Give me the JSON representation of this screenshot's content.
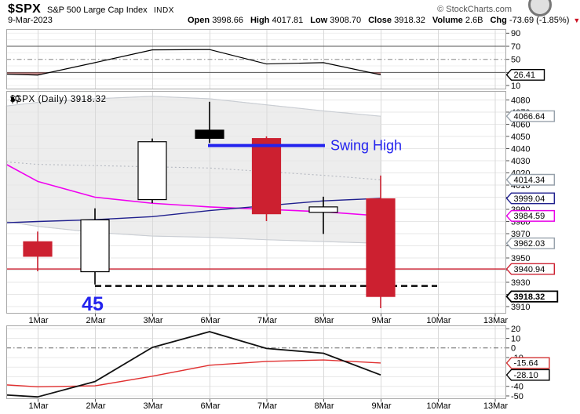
{
  "header": {
    "symbol": "$SPX",
    "name": "S&P 500 Large Cap Index",
    "exchange": "INDX",
    "credit": "© StockCharts.com",
    "date": "9-Mar-2023",
    "quote": [
      {
        "label": "Open",
        "value": "3998.66"
      },
      {
        "label": "High",
        "value": "4017.81"
      },
      {
        "label": "Low",
        "value": "3908.70"
      },
      {
        "label": "Close",
        "value": "3918.32"
      },
      {
        "label": "Volume",
        "value": "2.6B"
      },
      {
        "label": "Chg",
        "value": "-73.69 (-1.85%)"
      }
    ],
    "chg_triangle": "▼"
  },
  "main_label": "$SPX (Daily) 3918.32",
  "x_axis": {
    "labels": [
      "1Mar",
      "2Mar",
      "3Mar",
      "6Mar",
      "7Mar",
      "8Mar",
      "9Mar",
      "10Mar",
      "13Mar"
    ]
  },
  "colors": {
    "down_candle": "#cc2030",
    "annotation_blue": "#2323ee",
    "band_fill": "#ededed"
  },
  "chart_data": [
    {
      "name": "rsi_panel",
      "type": "line",
      "ylim": [
        4.1,
        96.4
      ],
      "ticks": [
        90,
        70,
        50,
        30,
        10
      ],
      "grid_faint": [
        90,
        80,
        60,
        40,
        20,
        10
      ],
      "ref_solid": [
        70,
        30
      ],
      "ref_dashdot": [
        50
      ],
      "categories": [
        "1 Mar",
        "2 Mar",
        "3 Mar",
        "6 Mar",
        "7 Mar",
        "8 Mar",
        "9 Mar"
      ],
      "series": [
        {
          "name": "rsi",
          "color": "#000000",
          "width": 1.2,
          "edge_value": 27.5,
          "values": [
            26,
            45,
            64.5,
            65,
            43,
            45,
            26.41
          ]
        }
      ],
      "fill_below": {
        "threshold": 30,
        "color": "rgba(160,70,70,0.65)"
      },
      "end_labels": [
        {
          "text": "26.41",
          "value": 26.41,
          "border": "#000000",
          "bold": false
        }
      ]
    },
    {
      "name": "price_panel",
      "type": "candlestick",
      "title": "$SPX (Daily) 3918.32",
      "ylim": [
        3904.2,
        4087.4
      ],
      "tick_min": 3910,
      "tick_max": 4080,
      "tick_step": 10,
      "categories": [
        "1 Mar",
        "2 Mar",
        "3 Mar",
        "6 Mar",
        "7 Mar",
        "8 Mar",
        "9 Mar"
      ],
      "body_width": 36,
      "candles": [
        {
          "date": "1 Mar",
          "open": 3963.34,
          "high": 3971.73,
          "low": 3939.05,
          "close": 3951.39,
          "style": "red"
        },
        {
          "date": "2 Mar",
          "open": 3938.68,
          "high": 3990.84,
          "low": 3928.16,
          "close": 3981.35,
          "style": "hollow"
        },
        {
          "date": "3 Mar",
          "open": 3998.02,
          "high": 4048.29,
          "low": 3995.17,
          "close": 4045.64,
          "style": "hollow"
        },
        {
          "date": "6 Mar",
          "open": 4055.15,
          "high": 4078.49,
          "low": 4044.61,
          "close": 4048.42,
          "style": "filled"
        },
        {
          "date": "7 Mar",
          "open": 4048.26,
          "high": 4050.0,
          "low": 3980.31,
          "close": 3986.37,
          "style": "red"
        },
        {
          "date": "8 Mar",
          "open": 3987.55,
          "high": 4000.41,
          "low": 3969.76,
          "close": 3992.01,
          "style": "hollow"
        },
        {
          "date": "9 Mar",
          "open": 3998.66,
          "high": 4017.81,
          "low": 3908.7,
          "close": 3918.32,
          "style": "red"
        }
      ],
      "band": {
        "fill": "#ededed",
        "stroke": "#c9cdd3",
        "middle_color": "#b4b8c0",
        "upper": {
          "edge_value": 4075,
          "values": [
            4078,
            4081,
            4083,
            4081,
            4076,
            4071,
            4066.64
          ]
        },
        "middle": {
          "edge_value": 4029,
          "values": [
            4027,
            4026,
            4025,
            4024,
            4021,
            4018,
            4014.34
          ]
        },
        "lower": {
          "edge_value": 3980,
          "values": [
            3976,
            3971,
            3968,
            3967,
            3965,
            3963.5,
            3962.03
          ]
        }
      },
      "overlays": [
        {
          "name": "ma_magenta",
          "color": "#f000f0",
          "width": 1.6,
          "edge_value": 4027,
          "values": [
            4013,
            4000,
            3995,
            3992,
            3990,
            3988,
            3984.59
          ]
        },
        {
          "name": "ma_navy",
          "color": "#20208e",
          "width": 1.4,
          "edge_value": 3979,
          "values": [
            3980,
            3981.5,
            3984,
            3989,
            3993,
            3997,
            3999.04
          ]
        }
      ],
      "horizontal_line": {
        "value": 3940.94,
        "color": "#cc2030"
      },
      "annotations": {
        "swing_high": {
          "text": "Swing High",
          "value": 4042.5,
          "from_index": 3,
          "to_index": 5,
          "color": "#2323ee"
        },
        "dashed_support": {
          "value": 3927,
          "from_index": 1,
          "to_index": 7,
          "color": "#000000"
        },
        "count": {
          "text": "45",
          "at_index": 1,
          "value": 3912.5,
          "color": "#2323ee"
        }
      },
      "end_labels": [
        {
          "text": "4066.64",
          "value": 4066.64,
          "border": "#97a1ab",
          "bold": false
        },
        {
          "text": "4014.34",
          "value": 4014.34,
          "border": "#97a1ab",
          "bold": false
        },
        {
          "text": "3999.04",
          "value": 3999.04,
          "border": "#20208e",
          "bold": false
        },
        {
          "text": "3984.59",
          "value": 3984.59,
          "border": "#e800e8",
          "bold": false
        },
        {
          "text": "3962.03",
          "value": 3962.03,
          "border": "#97a1ab",
          "bold": false
        },
        {
          "text": "3940.94",
          "value": 3940.94,
          "border": "#cc2030",
          "bold": false
        },
        {
          "text": "3918.32",
          "value": 3918.32,
          "border": "#000000",
          "bold": true
        }
      ]
    },
    {
      "name": "momentum_panel",
      "type": "line",
      "ylim": [
        -53.3,
        23.5
      ],
      "ticks": [
        20,
        10,
        0,
        -10,
        -40,
        -50
      ],
      "grid_faint": [
        20,
        10,
        -10,
        -20,
        -30,
        -40,
        -50
      ],
      "ref_dashdot": [
        0
      ],
      "categories": [
        "1 Mar",
        "2 Mar",
        "3 Mar",
        "6 Mar",
        "7 Mar",
        "8 Mar",
        "9 Mar"
      ],
      "series": [
        {
          "name": "signal_red",
          "color": "#e03030",
          "width": 1.4,
          "edge_value": -38.5,
          "values": [
            -40.5,
            -39.5,
            -29.5,
            -18,
            -14,
            -12.5,
            -15.64
          ]
        },
        {
          "name": "momentum_black",
          "color": "#111111",
          "width": 1.8,
          "edge_value": -49,
          "values": [
            -51,
            -35,
            0.5,
            17,
            -0.5,
            -5.5,
            -28.1
          ]
        }
      ],
      "end_labels": [
        {
          "text": "-15.64",
          "value": -15.64,
          "border": "#d23030",
          "bold": false
        },
        {
          "text": "-28.10",
          "value": -28.1,
          "border": "#000000",
          "bold": false
        }
      ]
    }
  ]
}
